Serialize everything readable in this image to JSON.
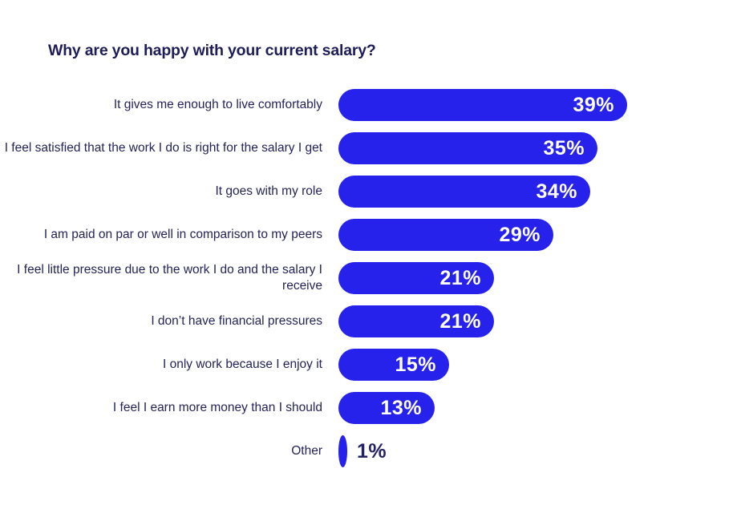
{
  "chart_data": {
    "type": "bar",
    "orientation": "horizontal",
    "title": "Why are you happy with your current salary?",
    "categories": [
      "It gives me enough to live comfortably",
      "I feel satisfied that the work I do is right for the salary I get",
      "It goes with my role",
      "I am paid on par or well in comparison to my peers",
      "I feel little pressure due to the work I do and the salary I receive",
      "I don’t have financial pressures",
      "I only work because I enjoy it",
      "I feel I earn more money than I should",
      "Other"
    ],
    "values": [
      39,
      35,
      34,
      29,
      21,
      21,
      15,
      13,
      1
    ],
    "value_suffix": "%",
    "xlim": [
      0,
      39
    ],
    "axes_visible": false,
    "grid": false,
    "legend": "none",
    "data_labels": "inside-end, outside for smallest bar",
    "colors": {
      "bar": "#2621EB",
      "value_label_inside": "#FFFFFF",
      "value_label_outside": "#232262",
      "category_label": "#252359",
      "title": "#1E1D58",
      "background": "#FFFFFF"
    }
  }
}
